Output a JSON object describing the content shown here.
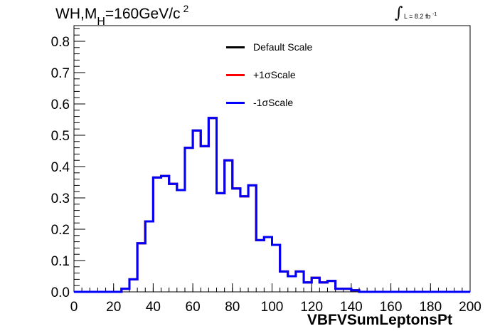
{
  "title": {
    "prefix": "WH,M",
    "subscript": "H",
    "value": "=160GeV/c",
    "superscript": "2"
  },
  "luminosity": {
    "integral": "∫",
    "text": "L = 8.2 fb",
    "superscript": "-1"
  },
  "legend": [
    {
      "label": "Default Scale",
      "color": "#000000"
    },
    {
      "label": "+1σScale",
      "color": "#ff0000"
    },
    {
      "label": "-1σScale",
      "color": "#0000ff"
    }
  ],
  "chart_data": {
    "type": "line",
    "style": "step-histogram",
    "xlabel": "VBFVSumLeptonsPt",
    "ylabel": "",
    "xlim": [
      0,
      200
    ],
    "ylim": [
      0,
      0.85
    ],
    "xticks": [
      "0",
      "20",
      "40",
      "60",
      "80",
      "100",
      "120",
      "140",
      "160",
      "180",
      "200"
    ],
    "yticks": [
      "0.0",
      "0.1",
      "0.2",
      "0.3",
      "0.4",
      "0.5",
      "0.6",
      "0.7",
      "0.8"
    ],
    "bin_edges": [
      0,
      4,
      8,
      12,
      16,
      20,
      24,
      28,
      32,
      36,
      40,
      44,
      48,
      52,
      56,
      60,
      64,
      68,
      72,
      76,
      80,
      84,
      88,
      92,
      96,
      100,
      104,
      108,
      112,
      116,
      120,
      124,
      128,
      132,
      136,
      140,
      144,
      148,
      152,
      156,
      160,
      164,
      168,
      172,
      176,
      180,
      184,
      188,
      192,
      196,
      200
    ],
    "series": [
      {
        "name": "Default Scale",
        "color": "#000000",
        "values": [
          0,
          0,
          0,
          0,
          0,
          0,
          0.01,
          0.04,
          0.155,
          0.225,
          0.365,
          0.37,
          0.345,
          0.325,
          0.46,
          0.515,
          0.465,
          0.555,
          0.315,
          0.42,
          0.33,
          0.305,
          0.34,
          0.165,
          0.175,
          0.15,
          0.065,
          0.05,
          0.065,
          0.03,
          0.045,
          0.03,
          0.035,
          0.01,
          0.01,
          0.005,
          0,
          0,
          0,
          0,
          0,
          0,
          0,
          0,
          0,
          0,
          0,
          0,
          0,
          0
        ]
      },
      {
        "name": "+1σScale",
        "color": "#ff0000",
        "values": [
          0,
          0,
          0,
          0,
          0,
          0,
          0.01,
          0.04,
          0.155,
          0.225,
          0.365,
          0.37,
          0.345,
          0.325,
          0.46,
          0.515,
          0.465,
          0.555,
          0.315,
          0.42,
          0.33,
          0.305,
          0.34,
          0.165,
          0.175,
          0.15,
          0.065,
          0.05,
          0.065,
          0.03,
          0.045,
          0.03,
          0.035,
          0.01,
          0.01,
          0.005,
          0,
          0,
          0,
          0,
          0,
          0,
          0,
          0,
          0,
          0,
          0,
          0,
          0,
          0
        ]
      },
      {
        "name": "-1σScale",
        "color": "#0000ff",
        "values": [
          0,
          0,
          0,
          0,
          0,
          0,
          0.01,
          0.04,
          0.155,
          0.225,
          0.365,
          0.37,
          0.345,
          0.325,
          0.46,
          0.515,
          0.465,
          0.555,
          0.315,
          0.42,
          0.33,
          0.305,
          0.34,
          0.165,
          0.175,
          0.15,
          0.065,
          0.05,
          0.065,
          0.03,
          0.045,
          0.03,
          0.035,
          0.01,
          0.01,
          0.005,
          0,
          0,
          0,
          0,
          0,
          0,
          0,
          0,
          0,
          0,
          0,
          0,
          0,
          0
        ]
      }
    ]
  }
}
